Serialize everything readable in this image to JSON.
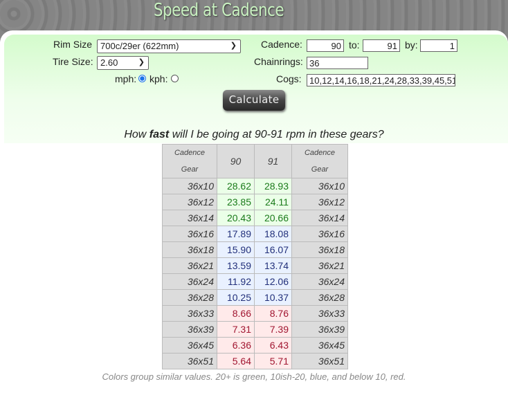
{
  "header": {
    "title": "Speed at Cadence"
  },
  "form": {
    "rim_label": "Rim Size",
    "rim_value": "700c/29er (622mm)",
    "tire_label": "Tire Size:",
    "tire_value": "2.60",
    "mph_label": "mph:",
    "kph_label": "kph:",
    "unit_selected": "mph",
    "cadence_label": "Cadence:",
    "cadence_from": "90",
    "to_label": "to:",
    "cadence_to": "91",
    "by_label": "by:",
    "cadence_by": "1",
    "chainrings_label": "Chainrings:",
    "chainrings_value": "36",
    "cogs_label": "Cogs:",
    "cogs_value": "10,12,14,16,18,21,24,28,33,39,45,51",
    "calculate_label": "Calculate"
  },
  "question": {
    "pre": "How ",
    "bold": "fast",
    "post": " will I be going at 90-91 rpm in these gears?"
  },
  "table": {
    "corner_top": "Cadence",
    "corner_bottom": "Gear",
    "cadences": [
      "90",
      "91"
    ],
    "rows": [
      {
        "gear": "36x10",
        "values": [
          "28.62",
          "28.93"
        ],
        "group": "green"
      },
      {
        "gear": "36x12",
        "values": [
          "23.85",
          "24.11"
        ],
        "group": "green"
      },
      {
        "gear": "36x14",
        "values": [
          "20.43",
          "20.66"
        ],
        "group": "green"
      },
      {
        "gear": "36x16",
        "values": [
          "17.89",
          "18.08"
        ],
        "group": "blue"
      },
      {
        "gear": "36x18",
        "values": [
          "15.90",
          "16.07"
        ],
        "group": "blue"
      },
      {
        "gear": "36x21",
        "values": [
          "13.59",
          "13.74"
        ],
        "group": "blue"
      },
      {
        "gear": "36x24",
        "values": [
          "11.92",
          "12.06"
        ],
        "group": "blue"
      },
      {
        "gear": "36x28",
        "values": [
          "10.25",
          "10.37"
        ],
        "group": "blue"
      },
      {
        "gear": "36x33",
        "values": [
          "8.66",
          "8.76"
        ],
        "group": "red"
      },
      {
        "gear": "36x39",
        "values": [
          "7.31",
          "7.39"
        ],
        "group": "red"
      },
      {
        "gear": "36x45",
        "values": [
          "6.36",
          "6.43"
        ],
        "group": "red"
      },
      {
        "gear": "36x51",
        "values": [
          "5.64",
          "5.71"
        ],
        "group": "red"
      }
    ]
  },
  "note": "Colors group similar values. 20+ is green, 10ish-20, blue, and below 10, red."
}
